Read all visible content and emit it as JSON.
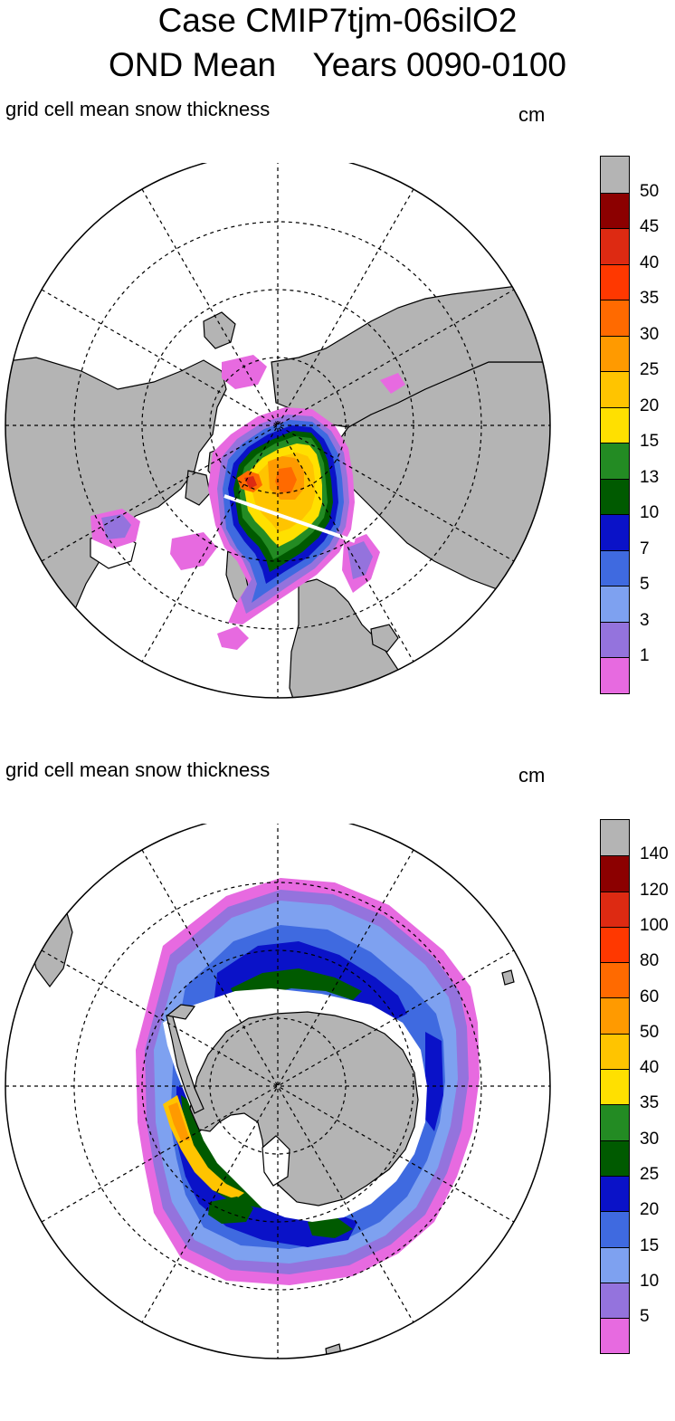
{
  "title": {
    "line1": "Case CMIP7tjm-06silO2",
    "line2": "OND Mean    Years 0090-0100"
  },
  "colors": {
    "land": "#b4b4b4",
    "ocean": "#ffffff",
    "levels": [
      "#e76ae0",
      "#9473dd",
      "#7ea1f0",
      "#3f6ae0",
      "#0a12c8",
      "#005a00",
      "#238b23",
      "#ffe000",
      "#ffc400",
      "#ff9a00",
      "#ff6a00",
      "#ff3800",
      "#dd2a12",
      "#8c0000",
      "#b4b4b4"
    ]
  },
  "panels": [
    {
      "id": "arctic",
      "variable_label": "grid cell mean snow thickness",
      "units": "cm",
      "projection": "north-polar-stereographic",
      "colorbar_labels": [
        "1",
        "3",
        "5",
        "7",
        "10",
        "13",
        "15",
        "20",
        "25",
        "30",
        "35",
        "40",
        "45",
        "50"
      ]
    },
    {
      "id": "antarctic",
      "variable_label": "grid cell mean snow thickness",
      "units": "cm",
      "projection": "south-polar-stereographic",
      "colorbar_labels": [
        "5",
        "10",
        "15",
        "20",
        "25",
        "30",
        "35",
        "40",
        "50",
        "60",
        "80",
        "100",
        "120",
        "140"
      ]
    }
  ]
}
